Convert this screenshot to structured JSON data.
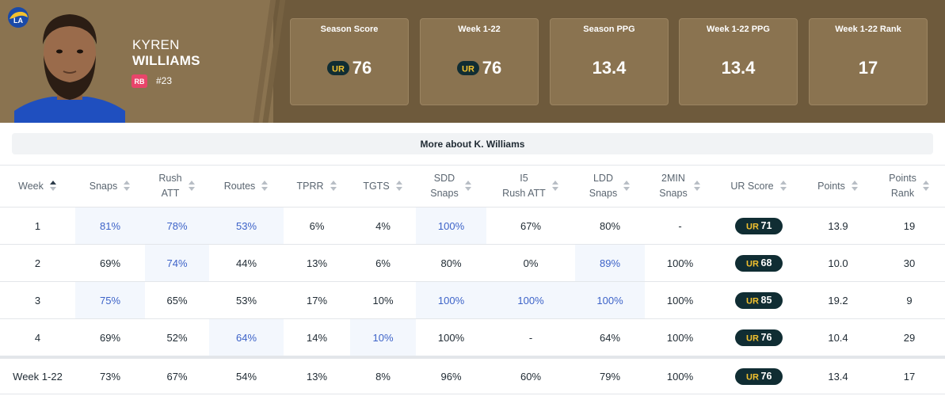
{
  "player": {
    "first_name": "KYREN",
    "last_name": "WILLIAMS",
    "position": "RB",
    "jersey": "#23"
  },
  "stat_cards": [
    {
      "label": "Season Score",
      "value": "76",
      "has_icon": true
    },
    {
      "label": "Week 1-22",
      "value": "76",
      "has_icon": true
    },
    {
      "label": "Season PPG",
      "value": "13.4",
      "has_icon": false
    },
    {
      "label": "Week 1-22 PPG",
      "value": "13.4",
      "has_icon": false
    },
    {
      "label": "Week 1-22 Rank",
      "value": "17",
      "has_icon": false
    }
  ],
  "more_button": "More about K. Williams",
  "table": {
    "columns": [
      {
        "l1": "Week",
        "l2": ""
      },
      {
        "l1": "Snaps",
        "l2": ""
      },
      {
        "l1": "Rush",
        "l2": "ATT"
      },
      {
        "l1": "Routes",
        "l2": ""
      },
      {
        "l1": "TPRR",
        "l2": ""
      },
      {
        "l1": "TGTS",
        "l2": ""
      },
      {
        "l1": "SDD",
        "l2": "Snaps"
      },
      {
        "l1": "I5",
        "l2": "Rush ATT"
      },
      {
        "l1": "LDD",
        "l2": "Snaps"
      },
      {
        "l1": "2MIN",
        "l2": "Snaps"
      },
      {
        "l1": "UR Score",
        "l2": ""
      },
      {
        "l1": "Points",
        "l2": ""
      },
      {
        "l1": "Points",
        "l2": "Rank"
      }
    ],
    "rows": [
      {
        "cells": [
          "1",
          "81%",
          "78%",
          "53%",
          "6%",
          "4%",
          "100%",
          "67%",
          "80%",
          "-",
          "71",
          "13.9",
          "19"
        ],
        "hl": [
          1,
          2,
          3,
          6
        ]
      },
      {
        "cells": [
          "2",
          "69%",
          "74%",
          "44%",
          "13%",
          "6%",
          "80%",
          "0%",
          "89%",
          "100%",
          "68",
          "10.0",
          "30"
        ],
        "hl": [
          2,
          8
        ]
      },
      {
        "cells": [
          "3",
          "75%",
          "65%",
          "53%",
          "17%",
          "10%",
          "100%",
          "100%",
          "100%",
          "100%",
          "85",
          "19.2",
          "9"
        ],
        "hl": [
          1,
          6,
          7,
          8
        ]
      },
      {
        "cells": [
          "4",
          "69%",
          "52%",
          "64%",
          "14%",
          "10%",
          "100%",
          "-",
          "64%",
          "100%",
          "76",
          "10.4",
          "29"
        ],
        "hl": [
          3,
          5
        ]
      }
    ],
    "total": {
      "cells": [
        "Week 1-22",
        "73%",
        "67%",
        "54%",
        "13%",
        "8%",
        "96%",
        "60%",
        "79%",
        "100%",
        "76",
        "13.4",
        "17"
      ]
    }
  },
  "colors": {
    "header_bg": "#6e5a3c",
    "card_bg": "#8a7350",
    "position_badge": "#e8456a",
    "ur_pill": "#102d33",
    "ur_accent": "#f2c12e",
    "highlight_text": "#3d63c8"
  },
  "icons": {
    "team_logo": "rams-logo-icon",
    "ur": "ur-logo-icon",
    "sort": "sort-icon"
  }
}
